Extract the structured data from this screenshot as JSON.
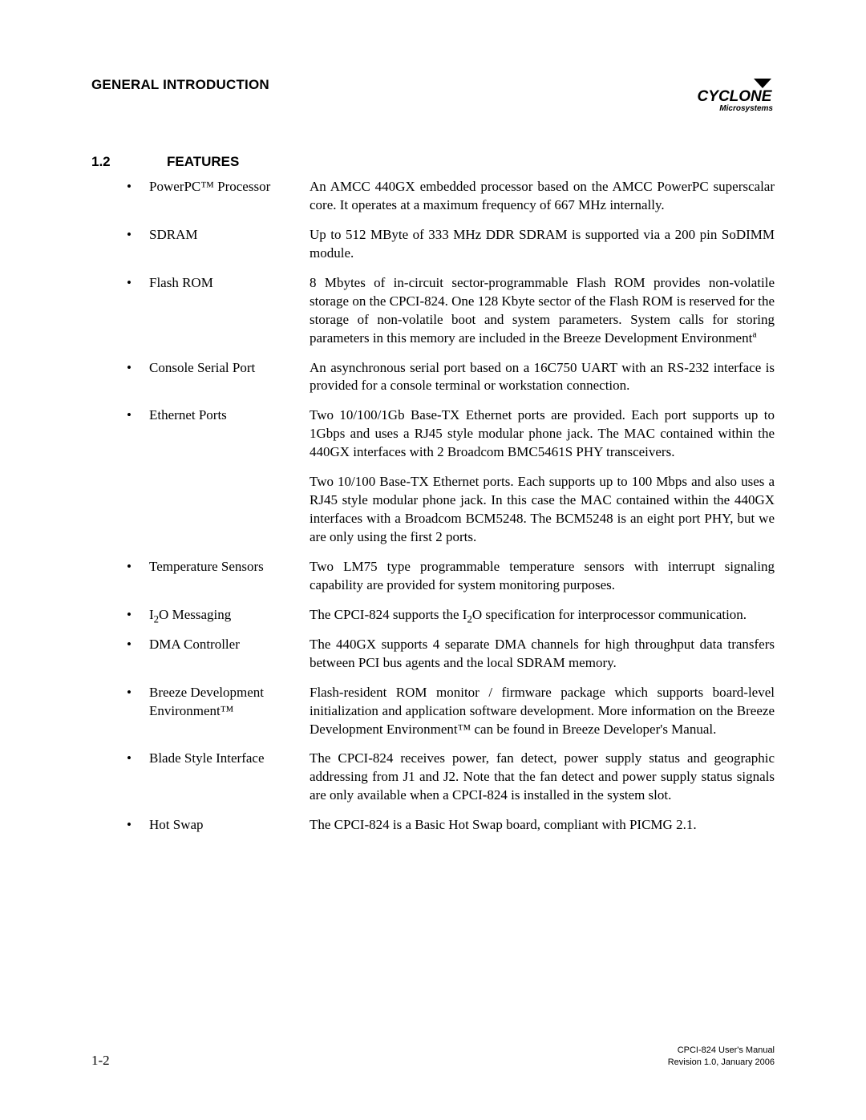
{
  "header": {
    "title": "GENERAL INTRODUCTION",
    "logo_name": "CYCLONE",
    "logo_sub": "Microsystems"
  },
  "section": {
    "number": "1.2",
    "title": "FEATURES"
  },
  "features": [
    {
      "name": "PowerPC™ Processor",
      "paragraphs": [
        "An AMCC 440GX embedded processor based on the AMCC PowerPC superscalar core.  It operates at a maximum frequency of 667 MHz internally."
      ]
    },
    {
      "name": "SDRAM",
      "paragraphs": [
        "Up to 512 MByte of 333 MHz DDR SDRAM is supported via a 200 pin SoDIMM module."
      ]
    },
    {
      "name": "Flash ROM",
      "paragraphs": [
        "8 Mbytes of in-circuit sector-programmable Flash ROM provides non-volatile storage on the CPCI-824. One 128 Kbyte sector of the Flash ROM is reserved for the storage of non-volatile boot and system parameters. System calls for storing parameters in this memory are included in the Breeze Development Environment"
      ],
      "superscript": "a"
    },
    {
      "name": "Console Serial Port",
      "paragraphs": [
        "An asynchronous serial port based on a 16C750 UART with an RS-232 interface is provided for a console terminal or workstation connection."
      ]
    },
    {
      "name": "Ethernet Ports",
      "paragraphs": [
        "Two 10/100/1Gb Base-TX Ethernet ports are provided.  Each port supports up to 1Gbps and uses a RJ45 style modular phone jack.  The MAC contained within the 440GX interfaces with 2 Broadcom BMC5461S PHY transceivers.",
        "Two 10/100 Base-TX Ethernet ports.  Each supports up to 100 Mbps and also uses a RJ45 style modular phone jack.  In this case the MAC contained within the 440GX interfaces with a Broadcom BCM5248.  The BCM5248 is an eight port PHY, but we are only using the first 2 ports."
      ]
    },
    {
      "name": "Temperature Sensors",
      "paragraphs": [
        "Two LM75 type programmable temperature sensors with interrupt signaling capability are provided for system monitoring purposes."
      ]
    },
    {
      "name_html": "I<sub>2</sub>O Messaging",
      "paragraphs_html": [
        "The CPCI-824 supports the I<sub>2</sub>O specification for interprocessor communication."
      ]
    },
    {
      "name": "DMA Controller",
      "paragraphs": [
        "The 440GX supports 4 separate DMA channels for high throughput data transfers between PCI bus agents and the local SDRAM memory."
      ]
    },
    {
      "name": "Breeze Development Environment™",
      "paragraphs": [
        "Flash-resident ROM monitor / firmware package which supports board-level initialization and application software development. More information on the Breeze Development Environment™  can be found in Breeze Developer's Manual."
      ]
    },
    {
      "name": "Blade Style Interface",
      "paragraphs": [
        "The CPCI-824 receives power, fan detect, power supply status and geographic addressing from J1 and J2.  Note that the fan detect and power supply status signals are only available when a CPCI-824 is installed in the system slot."
      ]
    },
    {
      "name": "Hot Swap",
      "paragraphs": [
        "The CPCI-824 is a Basic Hot Swap board, compliant with PICMG 2.1."
      ]
    }
  ],
  "footer": {
    "page_num": "1-2",
    "manual": "CPCI-824 User's Manual",
    "revision": "Revision 1.0, January 2006"
  },
  "colors": {
    "text": "#000000",
    "background": "#ffffff"
  }
}
